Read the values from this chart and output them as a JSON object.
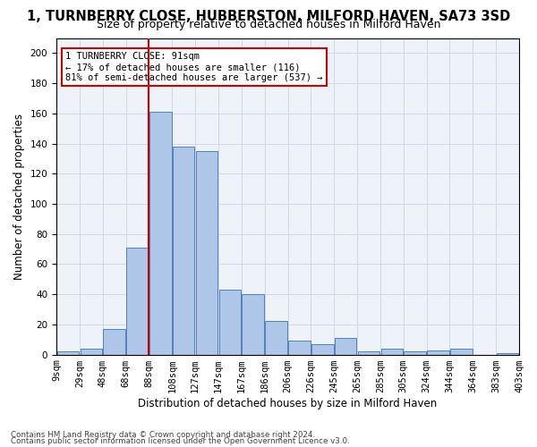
{
  "title": "1, TURNBERRY CLOSE, HUBBERSTON, MILFORD HAVEN, SA73 3SD",
  "subtitle": "Size of property relative to detached houses in Milford Haven",
  "xlabel": "Distribution of detached houses by size in Milford Haven",
  "ylabel": "Number of detached properties",
  "footnote1": "Contains HM Land Registry data © Crown copyright and database right 2024.",
  "footnote2": "Contains public sector information licensed under the Open Government Licence v3.0.",
  "annotation_line1": "1 TURNBERRY CLOSE: 91sqm",
  "annotation_line2": "← 17% of detached houses are smaller (116)",
  "annotation_line3": "81% of semi-detached houses are larger (537) →",
  "bin_labels": [
    "9sqm",
    "29sqm",
    "48sqm",
    "68sqm",
    "88sqm",
    "108sqm",
    "127sqm",
    "147sqm",
    "167sqm",
    "186sqm",
    "206sqm",
    "226sqm",
    "245sqm",
    "265sqm",
    "285sqm",
    "305sqm",
    "324sqm",
    "344sqm",
    "364sqm",
    "383sqm",
    "403sqm"
  ],
  "bar_values": [
    2,
    4,
    17,
    71,
    161,
    138,
    135,
    43,
    40,
    22,
    9,
    7,
    11,
    2,
    4,
    2,
    3,
    4,
    0,
    1
  ],
  "bar_color": "#aec6e8",
  "bar_edge_color": "#4f81bd",
  "highlight_bar_index": 4,
  "highlight_line_color": "#cc0000",
  "grid_color": "#d0d8e8",
  "background_color": "#eef2f9",
  "ylim": [
    0,
    210
  ],
  "yticks": [
    0,
    20,
    40,
    60,
    80,
    100,
    120,
    140,
    160,
    180,
    200
  ],
  "annotation_box_color": "#ffffff",
  "annotation_box_edge": "#cc0000",
  "title_fontsize": 10.5,
  "subtitle_fontsize": 9,
  "axis_label_fontsize": 8.5,
  "tick_fontsize": 7.5
}
